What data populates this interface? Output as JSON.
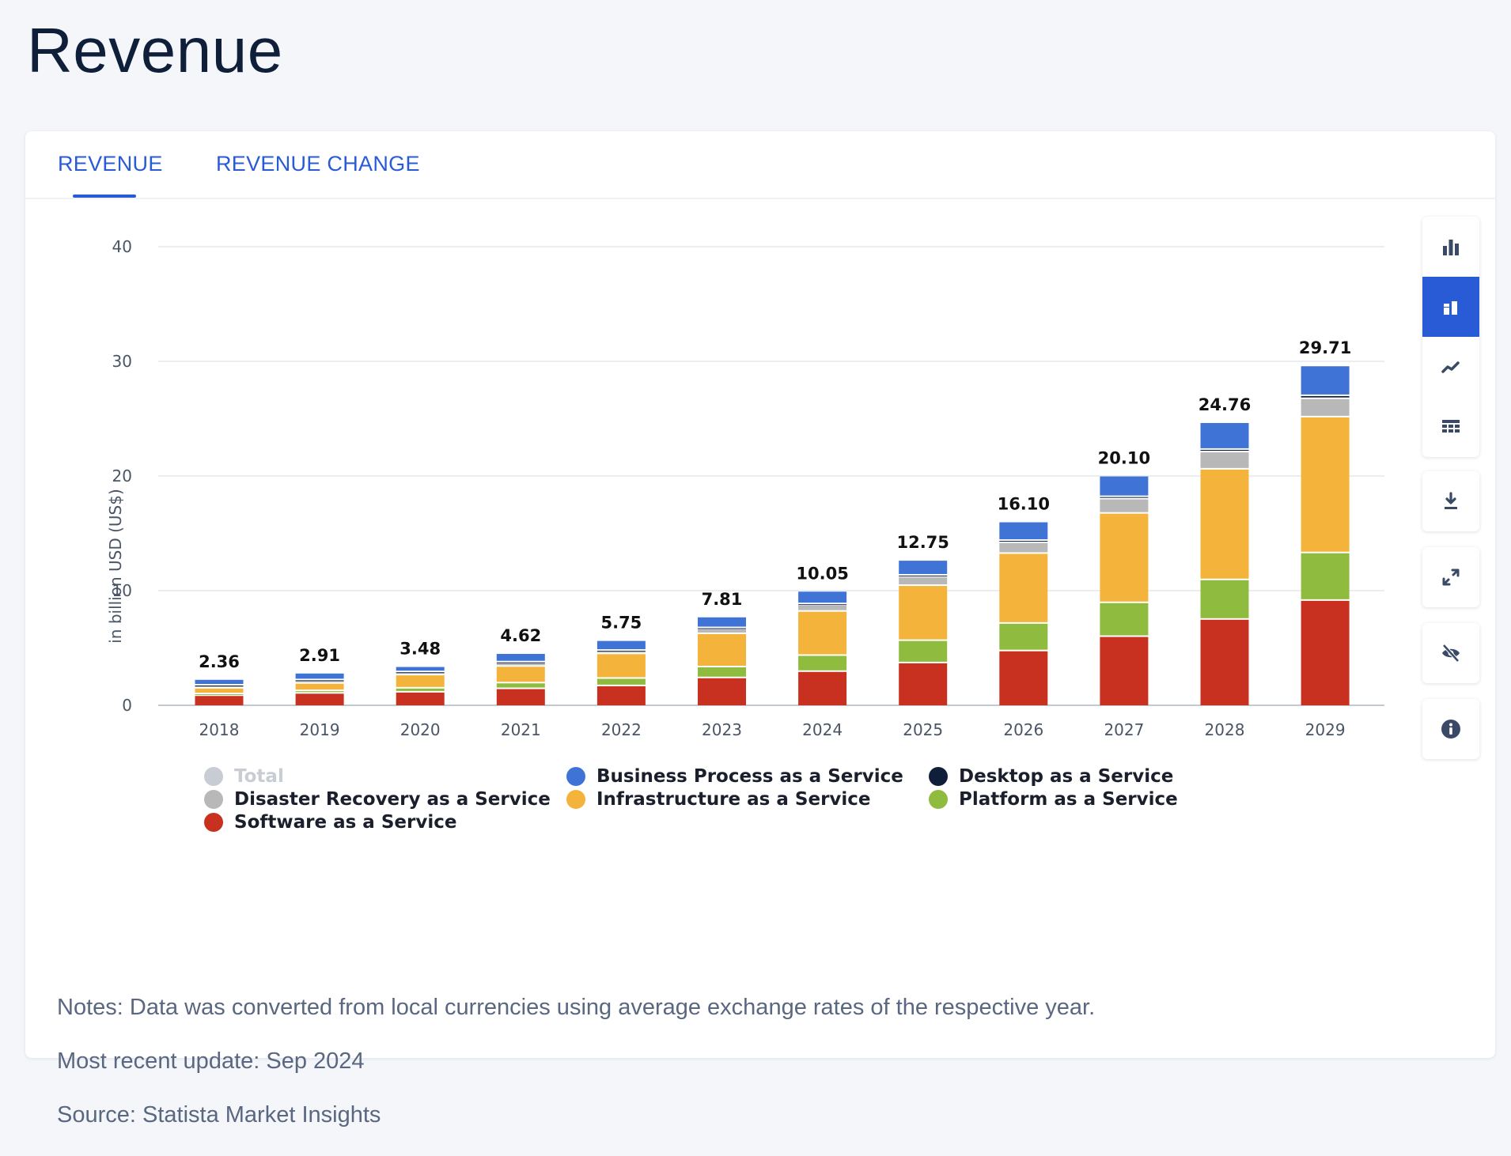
{
  "page": {
    "title": "Revenue"
  },
  "tabs": [
    {
      "label": "REVENUE",
      "active": true
    },
    {
      "label": "REVENUE CHANGE",
      "active": false
    }
  ],
  "colors": {
    "accent": "#2a5bd7",
    "saas": "#c8301f",
    "paas": "#8fbc3f",
    "iaas": "#f4b43c",
    "draas": "#b8b8b8",
    "desktop": "#0f1f3a",
    "bpaas": "#3f74d6",
    "total": "#c8ccd3"
  },
  "chart_data": {
    "type": "bar",
    "stacked": true,
    "title": "",
    "xlabel": "",
    "ylabel": "in billion USD (US$)",
    "ylim": [
      0,
      40
    ],
    "yticks": [
      0,
      10,
      20,
      30,
      40
    ],
    "grid": true,
    "legend_position": "bottom",
    "categories": [
      "2018",
      "2019",
      "2020",
      "2021",
      "2022",
      "2023",
      "2024",
      "2025",
      "2026",
      "2027",
      "2028",
      "2029"
    ],
    "totals": [
      "2.36",
      "2.91",
      "3.48",
      "4.62",
      "5.75",
      "7.81",
      "10.05",
      "12.75",
      "16.10",
      "20.10",
      "24.76",
      "29.71"
    ],
    "series": [
      {
        "name": "Software as a Service",
        "color": "#c8301f",
        "values": [
          0.95,
          1.15,
          1.25,
          1.55,
          1.8,
          2.5,
          3.05,
          3.8,
          4.85,
          6.1,
          7.6,
          9.25
        ]
      },
      {
        "name": "Platform as a Service",
        "color": "#8fbc3f",
        "values": [
          0.15,
          0.22,
          0.35,
          0.5,
          0.65,
          0.95,
          1.4,
          1.95,
          2.4,
          2.95,
          3.45,
          4.15
        ]
      },
      {
        "name": "Infrastructure as a Service",
        "color": "#f4b43c",
        "values": [
          0.5,
          0.65,
          1.15,
          1.45,
          2.15,
          2.9,
          3.85,
          4.8,
          6.1,
          7.8,
          9.65,
          11.85
        ]
      },
      {
        "name": "Disaster Recovery as a Service",
        "color": "#b8b8b8",
        "values": [
          0.2,
          0.24,
          0.2,
          0.3,
          0.2,
          0.4,
          0.53,
          0.75,
          0.95,
          1.25,
          1.5,
          1.6
        ]
      },
      {
        "name": "Desktop as a Service",
        "color": "#0f1f3a",
        "values": [
          0.06,
          0.06,
          0.07,
          0.08,
          0.09,
          0.11,
          0.12,
          0.15,
          0.18,
          0.2,
          0.22,
          0.26
        ]
      },
      {
        "name": "Business Process as a Service",
        "color": "#3f74d6",
        "values": [
          0.5,
          0.59,
          0.46,
          0.74,
          0.86,
          0.95,
          1.1,
          1.3,
          1.62,
          1.8,
          2.34,
          2.6
        ]
      }
    ],
    "legend": [
      {
        "name": "Total",
        "color": "#c8ccd3",
        "muted": true
      },
      {
        "name": "Business Process as a Service",
        "color": "#3f74d6",
        "muted": false
      },
      {
        "name": "Desktop as a Service",
        "color": "#0f1f3a",
        "muted": false
      },
      {
        "name": "Disaster Recovery as a Service",
        "color": "#b8b8b8",
        "muted": false
      },
      {
        "name": "Infrastructure as a Service",
        "color": "#f4b43c",
        "muted": false
      },
      {
        "name": "Platform as a Service",
        "color": "#8fbc3f",
        "muted": false
      },
      {
        "name": "Software as a Service",
        "color": "#c8301f",
        "muted": false
      }
    ]
  },
  "notes": {
    "note": "Notes: Data was converted from local currencies using average exchange rates of the respective year.",
    "update": "Most recent update: Sep 2024",
    "source": "Source: Statista Market Insights"
  },
  "toolbar": {
    "view_buttons": [
      {
        "icon": "bar-chart-icon",
        "active": false
      },
      {
        "icon": "stacked-bar-chart-icon",
        "active": true
      },
      {
        "icon": "line-chart-icon",
        "active": false
      },
      {
        "icon": "table-icon",
        "active": false
      }
    ],
    "actions": [
      {
        "icon": "download-icon"
      },
      {
        "icon": "fullscreen-icon"
      },
      {
        "icon": "hide-icon"
      },
      {
        "icon": "info-icon"
      }
    ]
  }
}
